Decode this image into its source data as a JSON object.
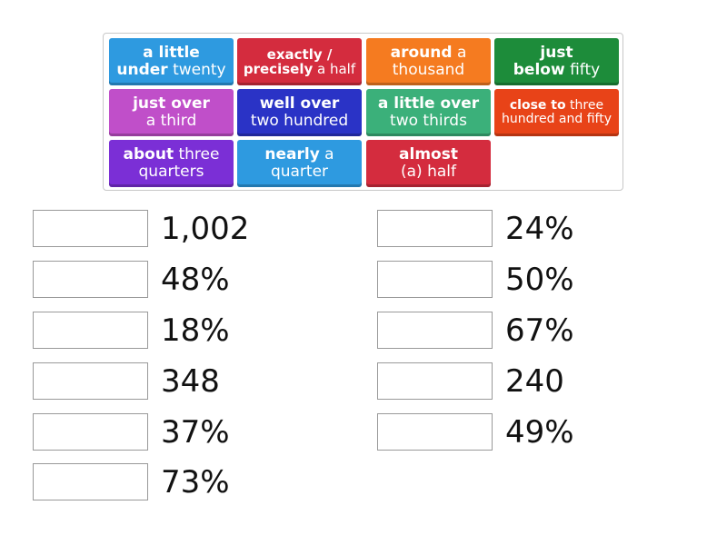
{
  "colors": {
    "blue": "#2e9ae0",
    "red": "#d42c3e",
    "orange": "#f57b20",
    "green": "#1d8c3a",
    "pink": "#c04fc9",
    "navy": "#2a33c6",
    "teal": "#3bb07a",
    "redorange": "#e84318",
    "purple": "#7b2fd6"
  },
  "tiles": [
    {
      "bold1": "a little",
      "norm1": "",
      "bold2": "under",
      "norm2": " twenty"
    },
    {
      "bold1": "exactly /",
      "norm1": "",
      "bold2": "precisely",
      "norm2": " a half"
    },
    {
      "bold1": "around",
      "norm1": " a",
      "bold2": "",
      "norm2": "thousand"
    },
    {
      "bold1": "just",
      "norm1": "",
      "bold2": "below",
      "norm2": " fifty"
    },
    {
      "bold1": "just over",
      "norm1": "",
      "bold2": "",
      "norm2": "a third"
    },
    {
      "bold1": "well over",
      "norm1": "",
      "bold2": "",
      "norm2": "two hundred"
    },
    {
      "bold1": "a little over",
      "norm1": "",
      "bold2": "",
      "norm2": "two thirds"
    },
    {
      "bold1": "close to",
      "norm1": " three",
      "bold2": "",
      "norm2": "hundred and fifty"
    },
    {
      "bold1": "about",
      "norm1": " three",
      "bold2": "",
      "norm2": "quarters"
    },
    {
      "bold1": "nearly",
      "norm1": " a",
      "bold2": "",
      "norm2": "quarter"
    },
    {
      "bold1": "almost",
      "norm1": "",
      "bold2": "",
      "norm2": "(a) half"
    }
  ],
  "targets_left": [
    "1,002",
    "48%",
    "18%",
    "348",
    "37%",
    "73%"
  ],
  "targets_right": [
    "24%",
    "50%",
    "67%",
    "240",
    "49%"
  ]
}
